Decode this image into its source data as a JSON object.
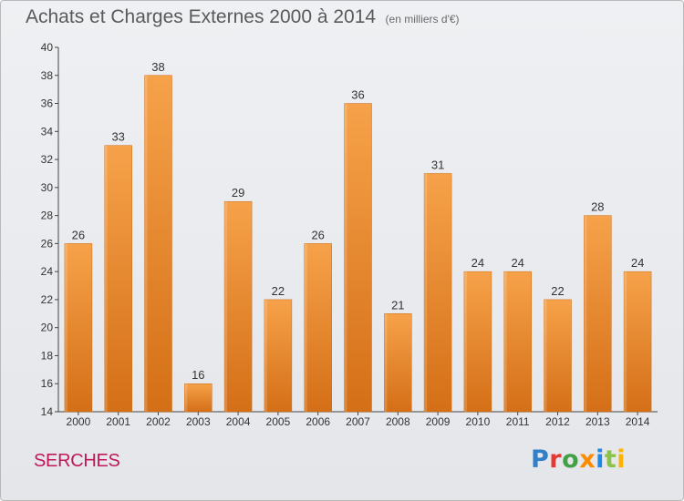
{
  "header": {
    "title": "Achats et Charges Externes 2000 à 2014",
    "unit": "(en milliers d'€)"
  },
  "footer": {
    "commune": "SERCHES",
    "logo_letters": [
      {
        "ch": "P",
        "color": "#2f80c8"
      },
      {
        "ch": "r",
        "color": "#e53935"
      },
      {
        "ch": "o",
        "color": "#43a047"
      },
      {
        "ch": "x",
        "color": "#fb8c00"
      },
      {
        "ch": "i",
        "color": "#1e88e5"
      },
      {
        "ch": "t",
        "color": "#8bc34a"
      },
      {
        "ch": "i",
        "color": "#ffb300"
      }
    ]
  },
  "chart_data": {
    "type": "bar",
    "categories": [
      "2000",
      "2001",
      "2002",
      "2003",
      "2004",
      "2005",
      "2006",
      "2007",
      "2008",
      "2009",
      "2010",
      "2011",
      "2012",
      "2013",
      "2014"
    ],
    "values": [
      26,
      33,
      38,
      16,
      29,
      22,
      26,
      36,
      21,
      31,
      24,
      24,
      22,
      28,
      24
    ],
    "title": "Achats et Charges Externes 2000 à 2014",
    "xlabel": "",
    "ylabel": "",
    "ylim": [
      14,
      40
    ],
    "yticks": [
      14,
      16,
      18,
      20,
      22,
      24,
      26,
      28,
      30,
      32,
      34,
      36,
      38,
      40
    ],
    "grid": false,
    "legend": "none",
    "bar_color": "#f39a3c",
    "bar_color_dark": "#d9751c"
  }
}
